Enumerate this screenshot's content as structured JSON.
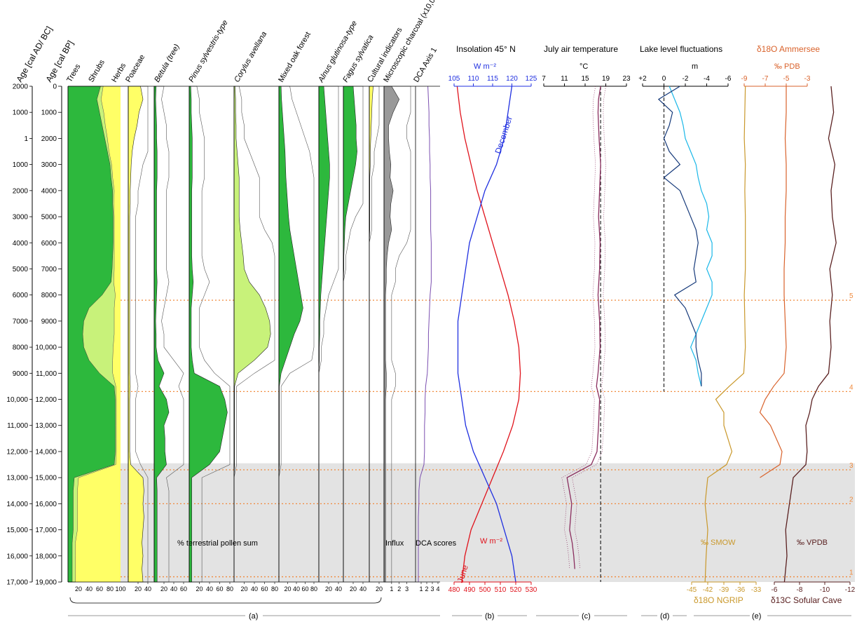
{
  "header": {
    "age_ad": "Age [cal AD/ BC]",
    "age_bp": "Age [cal BP]"
  },
  "pollen_headers": [
    "Trees",
    "Shrubs",
    "Herbs",
    "Poaceae",
    "Betula (tree)",
    "Pinus sylvestris-type",
    "Corylus avellana",
    "Mixed oak forest",
    "Alnus glutinosa-type",
    "Fagus sylvatica",
    "Cultural indicators",
    "Microscopic charcoal (x10,000)",
    "DCA Axis 1"
  ],
  "panel_titles": {
    "b": "Insolation 45° N",
    "c": "July air temperature",
    "d": "Lake level fluctuations",
    "e": "δ18O Ammersee"
  },
  "axis_units": {
    "b_top": "W m⁻²",
    "b_bottom": "W m⁻²",
    "c_top": "°C",
    "d_top": "m",
    "e_pdb": "‰ PDB",
    "e_smow": "‰ SMOW",
    "e_vpdb": "‰ VPDB"
  },
  "bottom_labels": {
    "pollen_sum": "% terrestrial pollen sum",
    "influx": "Influx",
    "dca": "DCA scores",
    "ngrip": "δ18O NGRIP",
    "sofular": "δ13C Sofular Cave"
  },
  "panel_letters": [
    "(a)",
    "(b)",
    "(c)",
    "(d)",
    "(e)"
  ],
  "series_labels": {
    "june": "June",
    "december": "December"
  },
  "zones": [
    "1",
    "2",
    "3",
    "4",
    "5"
  ],
  "colors": {
    "trees": "#2db83d",
    "shrubs": "#c8f27a",
    "herbs": "#ffff66",
    "gray_band": "#e3e3e3",
    "june": "#e0121b",
    "december": "#1f2fe0",
    "temp": "#8a2d5e",
    "lake_dark": "#15397a",
    "lake_light": "#19b7e8",
    "ammersee": "#d9622b",
    "ngrip": "#c9982b",
    "sofular": "#5a2020",
    "dca": "#7b4fb0",
    "zone_line": "#f08a3c"
  },
  "chart_data": {
    "type": "line",
    "y_axis": {
      "ad_bc_ticks": [
        "2000",
        "1000",
        "1",
        "1000",
        "2000",
        "3000",
        "4000",
        "5000",
        "6000",
        "7000",
        "8000",
        "9000",
        "10,000",
        "11,000",
        "12,000",
        "13,000",
        "14,000",
        "15,000",
        "16,000",
        "17,000"
      ],
      "bp_ticks": [
        "0",
        "1000",
        "2000",
        "3000",
        "4000",
        "5000",
        "6000",
        "7000",
        "8000",
        "9000",
        "10,000",
        "11,000",
        "12,000",
        "13,000",
        "14,000",
        "15,000",
        "16,000",
        "17,000",
        "18,000",
        "19,000"
      ],
      "bp_range": [
        0,
        19000
      ],
      "direction": "age increases downward"
    },
    "zone_boundaries_bp": [
      {
        "label": "5",
        "age": 8200
      },
      {
        "label": "4",
        "age": 11700
      },
      {
        "label": "3",
        "age": 14700
      },
      {
        "label": "2",
        "age": 16000
      },
      {
        "label": "1",
        "age": 18800
      }
    ],
    "gray_band_bp": [
      14450,
      19000
    ],
    "pollen": {
      "ages_bp": [
        0,
        500,
        1000,
        1500,
        2000,
        2500,
        3000,
        3500,
        4000,
        4500,
        5000,
        5500,
        6000,
        6500,
        7000,
        7500,
        8000,
        8500,
        9000,
        9500,
        10000,
        10500,
        11000,
        11500,
        12000,
        12500,
        13000,
        13500,
        14000,
        14500,
        15000,
        15500,
        16000,
        16500,
        17000,
        17500,
        18000,
        18500,
        19000
      ],
      "trees": [
        62,
        55,
        60,
        65,
        70,
        75,
        80,
        82,
        85,
        85,
        86,
        86,
        86,
        85,
        84,
        82,
        65,
        40,
        30,
        28,
        30,
        40,
        60,
        88,
        90,
        90,
        90,
        90,
        90,
        88,
        12,
        10,
        10,
        10,
        10,
        8,
        8,
        8,
        8
      ],
      "shrubs": [
        5,
        8,
        8,
        6,
        5,
        3,
        3,
        3,
        3,
        2,
        2,
        2,
        2,
        3,
        4,
        5,
        25,
        48,
        58,
        60,
        56,
        45,
        25,
        3,
        2,
        2,
        2,
        2,
        2,
        3,
        8,
        8,
        8,
        8,
        8,
        6,
        6,
        6,
        6
      ],
      "poaceae": [
        25,
        30,
        22,
        18,
        12,
        8,
        6,
        5,
        4,
        4,
        3,
        3,
        3,
        3,
        3,
        3,
        3,
        3,
        3,
        3,
        3,
        3,
        3,
        4,
        3,
        3,
        3,
        3,
        3,
        5,
        30,
        32,
        30,
        32,
        30,
        28,
        30,
        28,
        30
      ],
      "betula": [
        4,
        3,
        4,
        5,
        5,
        6,
        6,
        6,
        5,
        5,
        5,
        5,
        5,
        5,
        5,
        6,
        5,
        4,
        3,
        4,
        4,
        8,
        20,
        10,
        25,
        30,
        20,
        22,
        22,
        25,
        5,
        6,
        6,
        6,
        6,
        6,
        6,
        6,
        6
      ],
      "pinus": [
        3,
        4,
        4,
        5,
        6,
        6,
        6,
        6,
        5,
        5,
        5,
        5,
        5,
        5,
        6,
        8,
        6,
        4,
        4,
        4,
        4,
        6,
        10,
        60,
        70,
        75,
        70,
        65,
        60,
        40,
        5,
        5,
        5,
        5,
        5,
        5,
        5,
        5,
        5
      ],
      "corylus": [
        2,
        3,
        3,
        4,
        4,
        6,
        8,
        10,
        10,
        10,
        10,
        12,
        15,
        18,
        20,
        30,
        50,
        62,
        70,
        72,
        66,
        40,
        8,
        1,
        1,
        1,
        1,
        1,
        1,
        1,
        0,
        0,
        0,
        0,
        0,
        0,
        0,
        0,
        0
      ],
      "oak": [
        5,
        6,
        8,
        10,
        12,
        14,
        15,
        16,
        18,
        20,
        22,
        25,
        30,
        35,
        40,
        45,
        50,
        55,
        48,
        35,
        25,
        15,
        5,
        1,
        1,
        1,
        1,
        1,
        1,
        1,
        0,
        0,
        0,
        0,
        0,
        0,
        0,
        0,
        0
      ],
      "alnus": [
        10,
        12,
        14,
        16,
        18,
        20,
        22,
        22,
        20,
        18,
        16,
        14,
        12,
        10,
        8,
        6,
        4,
        3,
        2,
        2,
        1,
        1,
        0,
        0,
        0,
        0,
        0,
        0,
        0,
        0,
        0,
        0,
        0,
        0,
        0,
        0,
        0,
        0,
        0
      ],
      "fagus": [
        20,
        22,
        24,
        26,
        26,
        28,
        25,
        20,
        15,
        10,
        5,
        3,
        2,
        1,
        1,
        0,
        0,
        0,
        0,
        0,
        0,
        0,
        0,
        0,
        0,
        0,
        0,
        0,
        0,
        0,
        0,
        0,
        0,
        0,
        0,
        0,
        0,
        0,
        0
      ],
      "cultural": [
        8,
        6,
        5,
        4,
        3,
        2,
        2,
        1,
        1,
        1,
        1,
        1,
        0,
        0,
        0,
        0,
        0,
        0,
        0,
        0,
        0,
        0,
        0,
        0,
        0,
        0,
        0,
        0,
        0,
        0,
        0,
        0,
        0,
        0,
        0,
        0,
        0,
        0,
        0
      ],
      "charcoal": [
        1.0,
        2.0,
        1.2,
        0.6,
        0.6,
        0.7,
        0.9,
        0.8,
        1.2,
        0.9,
        0.8,
        1.0,
        0.6,
        0.4,
        0.3,
        0.3,
        0.2,
        0.2,
        0.2,
        0.2,
        0.2,
        0.2,
        0.3,
        0.3,
        0.2,
        0.2,
        0.2,
        0.2,
        0.2,
        0.2,
        0.2,
        0.2,
        0.2,
        0.2,
        0.2,
        0.2,
        0.2,
        0.2,
        0.2
      ],
      "dca": [
        2.2,
        2.3,
        2.4,
        2.4,
        2.5,
        2.5,
        2.6,
        2.6,
        2.7,
        2.7,
        2.7,
        2.7,
        2.8,
        2.8,
        2.8,
        2.8,
        2.6,
        2.5,
        2.4,
        2.3,
        2.3,
        2.2,
        2.1,
        1.8,
        1.7,
        1.7,
        1.6,
        1.6,
        1.6,
        1.5,
        0.8,
        0.6,
        0.6,
        0.5,
        0.5,
        0.5,
        0.5,
        0.5,
        0.5
      ]
    },
    "pollen_scales": {
      "trees_ticks": [
        "20",
        "40",
        "60",
        "80",
        "100"
      ],
      "poaceae_ticks": [
        "20",
        "40"
      ],
      "betula_ticks": [
        "20",
        "40",
        "60"
      ],
      "pinus_ticks": [
        "20",
        "40",
        "60",
        "80"
      ],
      "corylus_ticks": [
        "20",
        "40",
        "60",
        "80"
      ],
      "oak_ticks": [
        "20",
        "40",
        "60",
        "80"
      ],
      "alnus_ticks": [
        "20",
        "40"
      ],
      "fagus_ticks": [
        "20",
        "40"
      ],
      "cultural_ticks": [
        "20"
      ],
      "charcoal_ticks": [
        "1",
        "2",
        "3"
      ],
      "dca_ticks": [
        "1",
        "2",
        "3",
        "4"
      ]
    },
    "insolation": {
      "ages_bp": [
        0,
        1000,
        2000,
        3000,
        4000,
        5000,
        6000,
        7000,
        8000,
        9000,
        10000,
        11000,
        12000,
        13000,
        14000,
        15000,
        16000,
        17000,
        18000,
        19000
      ],
      "june": [
        482,
        484,
        487,
        491,
        495,
        500,
        505,
        510,
        515,
        519,
        522,
        523,
        522,
        518,
        512,
        505,
        498,
        491,
        487,
        485
      ],
      "december": [
        120,
        119,
        118,
        116,
        113,
        111,
        109,
        108,
        107,
        106,
        106,
        106,
        107,
        108,
        110,
        113,
        116,
        118,
        120,
        121
      ],
      "june_axis": [
        480,
        490,
        500,
        510,
        520,
        530
      ],
      "december_axis": [
        105,
        110,
        115,
        120,
        125
      ]
    },
    "july_temperature": {
      "ages_bp": [
        0,
        500,
        1000,
        2000,
        3000,
        4000,
        5000,
        6000,
        7000,
        8000,
        9000,
        10000,
        11000,
        11500,
        12000,
        13000,
        14000,
        14500,
        15000,
        16000,
        17000,
        17500,
        18000,
        18500
      ],
      "values": [
        18.0,
        17.6,
        17.5,
        17.7,
        18.0,
        17.8,
        17.6,
        17.9,
        17.8,
        17.5,
        17.8,
        17.9,
        17.5,
        17.2,
        17.8,
        17.6,
        17.3,
        16.2,
        11.5,
        12.4,
        12.0,
        12.5,
        12.8,
        13.0
      ],
      "axis_ticks": [
        "7",
        "11",
        "15",
        "19",
        "23"
      ],
      "reference_line": 18.0
    },
    "lake_level": {
      "ages_bp": [
        0,
        500,
        1000,
        1500,
        2000,
        2500,
        3000,
        3500,
        4000,
        4500,
        5000,
        5500,
        6000,
        6500,
        7000,
        7500,
        8000,
        8500,
        9000,
        9500,
        10000,
        10500,
        11000,
        11500
      ],
      "dark": [
        -1.5,
        0.5,
        -0.8,
        -0.5,
        0,
        -0.5,
        -1.5,
        0,
        -1.5,
        -2,
        -2.5,
        -3,
        -3.2,
        -3,
        -2.8,
        -3,
        -1.0,
        -2,
        -2.5,
        -3,
        -3.0,
        -3.2,
        -3.5,
        -3.5
      ],
      "light": [
        -0.5,
        -1.0,
        -1.5,
        -1.8,
        -2.0,
        -2.5,
        -3.0,
        -3.2,
        -3.5,
        -4.0,
        -4.2,
        -4.0,
        -4.5,
        -4.5,
        -4.0,
        -4.5,
        -4.5,
        -4.0,
        -3.5,
        -3.0,
        -2.5,
        -3.0,
        -3.2,
        -3.5
      ],
      "axis_ticks": [
        "+2",
        "0",
        "-2",
        "-4",
        "-6"
      ]
    },
    "ammersee_d18O": {
      "ages_bp": [
        0,
        1000,
        2000,
        3000,
        4000,
        5000,
        6000,
        7000,
        8000,
        9000,
        10000,
        11000,
        11500,
        12000,
        12500,
        13000,
        14000,
        14500,
        15000
      ],
      "values": [
        -5.0,
        -5.0,
        -5.1,
        -5.0,
        -5.0,
        -5.1,
        -5.1,
        -5.2,
        -5.2,
        -5.1,
        -5.0,
        -5.2,
        -6.2,
        -7.0,
        -7.5,
        -6.5,
        -5.4,
        -5.6,
        -7.5
      ],
      "axis_ticks": [
        "-9",
        "-7",
        "-5",
        "-3"
      ]
    },
    "ngrip_d18O": {
      "ages_bp": [
        0,
        1000,
        2000,
        3000,
        4000,
        5000,
        6000,
        7000,
        8000,
        9000,
        10000,
        11000,
        11500,
        12000,
        12500,
        13000,
        14000,
        14500,
        15000,
        16000,
        17000,
        18000,
        19000
      ],
      "values": [
        -35.0,
        -35.1,
        -35.2,
        -35.0,
        -35.1,
        -35.0,
        -35.0,
        -35.0,
        -35.2,
        -35.1,
        -35.0,
        -35.3,
        -38.0,
        -40.5,
        -39.0,
        -39.0,
        -37.5,
        -38.5,
        -42.0,
        -42.5,
        -42.0,
        -42.3,
        -42.5
      ],
      "axis_ticks": [
        "-45",
        "-42",
        "-39",
        "-36",
        "-33"
      ]
    },
    "sofular_d13C": {
      "ages_bp": [
        0,
        1000,
        2000,
        3000,
        4000,
        5000,
        6000,
        7000,
        8000,
        9000,
        10000,
        11000,
        11500,
        12000,
        12500,
        13000,
        14000,
        14500,
        15000,
        16000,
        17000,
        18000,
        19000
      ],
      "values": [
        -10.5,
        -10.7,
        -10.3,
        -10.8,
        -10.5,
        -10.6,
        -10.9,
        -10.4,
        -10.6,
        -10.4,
        -10.5,
        -10.3,
        -9.5,
        -9.0,
        -8.8,
        -8.5,
        -8.6,
        -8.5,
        -7.5,
        -7.2,
        -6.9,
        -7.0,
        -6.8
      ],
      "axis_ticks": [
        "-6",
        "-8",
        "-10",
        "-12"
      ]
    }
  }
}
